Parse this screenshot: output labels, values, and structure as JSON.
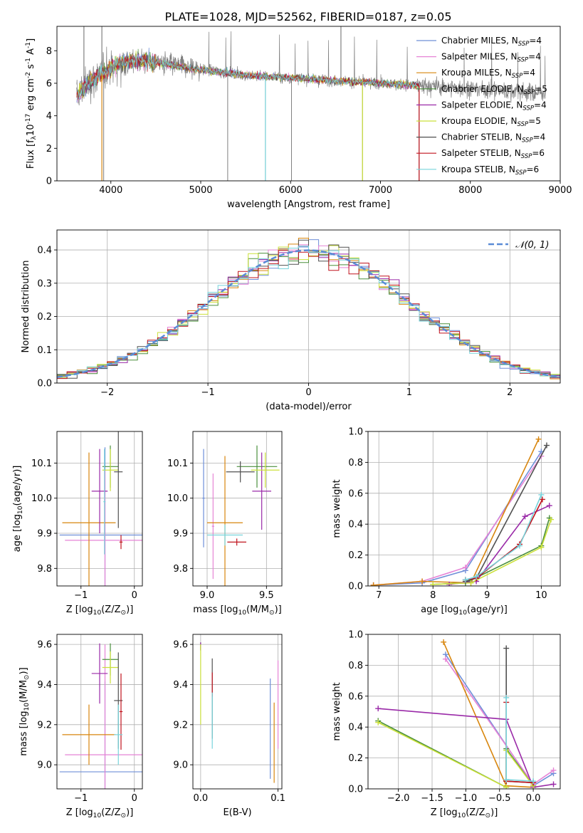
{
  "figure_title": "PLATE=1028, MJD=52562, FIBERID=0187, z=0.05",
  "models": [
    {
      "label": "Chabrier MILES, N$_{SSP}$=4",
      "display": "Chabrier MILES, N",
      "sub": "SSP",
      "tail": "=4",
      "color": "#6f8fd8"
    },
    {
      "label": "Salpeter MILES, N$_{SSP}$=4",
      "display": "Salpeter MILES, N",
      "sub": "SSP",
      "tail": "=4",
      "color": "#e683d6"
    },
    {
      "label": "Kroupa MILES, N$_{SSP}$=4",
      "display": "Kroupa MILES, N",
      "sub": "SSP",
      "tail": "=4",
      "color": "#d8860e"
    },
    {
      "label": "Chabrier ELODIE, N$_{SSP}$=5",
      "display": "Chabrier ELODIE, N",
      "sub": "SSP",
      "tail": "=5",
      "color": "#4a8f3c"
    },
    {
      "label": "Salpeter ELODIE, N$_{SSP}$=4",
      "display": "Salpeter ELODIE, N",
      "sub": "SSP",
      "tail": "=4",
      "color": "#9a2aa8"
    },
    {
      "label": "Kroupa ELODIE, N$_{SSP}$=5",
      "display": "Kroupa ELODIE, N",
      "sub": "SSP",
      "tail": "=5",
      "color": "#cbe03a"
    },
    {
      "label": "Chabrier STELIB, N$_{SSP}$=4",
      "display": "Chabrier STELIB, N",
      "sub": "SSP",
      "tail": "=4",
      "color": "#505050"
    },
    {
      "label": "Salpeter STELIB, N$_{SSP}$=6",
      "display": "Salpeter STELIB, N",
      "sub": "SSP",
      "tail": "=6",
      "color": "#c0141e"
    },
    {
      "label": "Kroupa STELIB, N$_{SSP}$=6",
      "display": "Kroupa STELIB, N",
      "sub": "SSP",
      "tail": "=6",
      "color": "#78d4dc"
    }
  ],
  "chart_data": [
    {
      "id": "spectrum",
      "type": "line",
      "xlabel": "wavelength [Angstrom, rest frame]",
      "ylabel": "Flux [f$_\\lambda$10$^{-17}$ erg cm$^{-2}$ s$^{-1}$ A$^{-1}$]",
      "xlim": [
        3400,
        9000
      ],
      "ylim": [
        0,
        9.5
      ],
      "xticks": [
        4000,
        5000,
        6000,
        7000,
        8000,
        9000
      ],
      "yticks": [
        0,
        2,
        4,
        6,
        8
      ],
      "data_color": "#808080",
      "continuum": [
        [
          3620,
          5.2
        ],
        [
          3700,
          5.8
        ],
        [
          3900,
          6.6
        ],
        [
          4100,
          7.3
        ],
        [
          4300,
          7.4
        ],
        [
          4500,
          7.3
        ],
        [
          4700,
          7.1
        ],
        [
          4900,
          6.9
        ],
        [
          5200,
          6.7
        ],
        [
          5500,
          6.5
        ],
        [
          5800,
          6.4
        ],
        [
          6100,
          6.3
        ],
        [
          6400,
          6.2
        ],
        [
          6700,
          6.1
        ],
        [
          7000,
          6.0
        ],
        [
          7300,
          5.9
        ],
        [
          7600,
          5.8
        ],
        [
          7900,
          5.7
        ],
        [
          8200,
          5.6
        ],
        [
          8500,
          5.5
        ],
        [
          8800,
          5.4
        ]
      ],
      "dropouts": [
        3920,
        5300,
        5720,
        6010,
        6800,
        7430
      ],
      "spikes": [
        [
          6560,
          9.5
        ],
        [
          3700,
          9.5
        ],
        [
          3900,
          9.5
        ]
      ],
      "data_range": [
        3620,
        8840
      ],
      "model_range": [
        3620,
        7430
      ],
      "legend_position": "upper right"
    },
    {
      "id": "residuals",
      "type": "histogram",
      "xlabel": "(data-model)/error",
      "ylabel": "Normed distribution",
      "xlim": [
        -2.5,
        2.5
      ],
      "ylim": [
        0,
        0.46
      ],
      "xticks": [
        -2,
        -1,
        0,
        1,
        2
      ],
      "yticks": [
        0.0,
        0.1,
        0.2,
        0.3,
        0.4
      ],
      "bin_width": 0.1,
      "reference": {
        "label": "$\\mathcal{N}(0,1)$",
        "display": "𝒩(0, 1)",
        "mu": 0,
        "sigma": 1,
        "color": "#5a8bd6"
      },
      "legend_position": "upper right"
    },
    {
      "id": "age_vs_z",
      "type": "errorbar",
      "xlabel": "Z [log$_{10}$(Z/Z$_\\odot$)]",
      "ylabel": "age  [log$_{10}$(age/yr)]",
      "xlim": [
        -1.45,
        0.15
      ],
      "ylim": [
        9.75,
        10.19
      ],
      "xticks": [
        -1,
        0
      ],
      "yticks": [
        9.8,
        9.9,
        10.0,
        10.1
      ],
      "points": [
        {
          "x": -0.55,
          "xerr": 0.85,
          "y": 9.895,
          "yerr": 0.25,
          "color": "#6f8fd8"
        },
        {
          "x": -0.55,
          "xerr": 0.75,
          "y": 9.88,
          "yerr": 0.2,
          "color": "#e683d6"
        },
        {
          "x": -0.85,
          "xerr": 0.5,
          "y": 9.93,
          "yerr": 0.2,
          "color": "#d8860e"
        },
        {
          "x": -0.45,
          "xerr": 0.15,
          "y": 10.09,
          "yerr": 0.06,
          "color": "#4a8f3c"
        },
        {
          "x": -0.65,
          "xerr": 0.15,
          "y": 10.02,
          "yerr": 0.12,
          "color": "#9a2aa8"
        },
        {
          "x": -0.45,
          "xerr": 0.15,
          "y": 10.08,
          "yerr": 0.06,
          "color": "#cbe03a"
        },
        {
          "x": -0.3,
          "xerr": 0.08,
          "y": 10.075,
          "yerr": 0.16,
          "color": "#505050"
        },
        {
          "x": -0.25,
          "xerr": 0.03,
          "y": 9.875,
          "yerr": 0.02,
          "color": "#c0141e"
        },
        {
          "x": -0.56,
          "xerr": 0.02,
          "y": 9.99,
          "yerr": 0.15,
          "color": "#78d4dc"
        }
      ]
    },
    {
      "id": "age_vs_mass",
      "type": "errorbar",
      "xlabel": "mass [log$_{10}$(M/M$_\\odot$)]",
      "ylabel": "",
      "xlim": [
        8.88,
        9.63
      ],
      "ylim": [
        9.75,
        10.19
      ],
      "xticks": [
        9.0,
        9.5
      ],
      "yticks": [
        9.8,
        9.9,
        10.0,
        10.1
      ],
      "points": [
        {
          "x": 8.97,
          "xerr": 0.01,
          "y": 10.0,
          "yerr": 0.14,
          "color": "#6f8fd8"
        },
        {
          "x": 9.05,
          "xerr": 0.01,
          "y": 9.92,
          "yerr": 0.15,
          "color": "#e683d6"
        },
        {
          "x": 9.15,
          "xerr": 0.15,
          "y": 9.93,
          "yerr": 0.19,
          "color": "#d8860e"
        },
        {
          "x": 9.42,
          "xerr": 0.17,
          "y": 10.09,
          "yerr": 0.06,
          "color": "#4a8f3c"
        },
        {
          "x": 9.46,
          "xerr": 0.08,
          "y": 10.02,
          "yerr": 0.11,
          "color": "#9a2aa8"
        },
        {
          "x": 9.49,
          "xerr": 0.12,
          "y": 10.08,
          "yerr": 0.05,
          "color": "#cbe03a"
        },
        {
          "x": 9.28,
          "xerr": 0.12,
          "y": 10.075,
          "yerr": 0.03,
          "color": "#505050"
        },
        {
          "x": 9.25,
          "xerr": 0.08,
          "y": 9.875,
          "yerr": 0.01,
          "color": "#c0141e"
        },
        {
          "x": 9.15,
          "xerr": 0.15,
          "y": 9.895,
          "yerr": 0.03,
          "color": "#78d4dc"
        }
      ]
    },
    {
      "id": "weight_vs_age",
      "type": "line",
      "xlabel": "age  [log$_{10}$(age/yr)]",
      "ylabel": "mass weight",
      "xlim": [
        6.8,
        10.35
      ],
      "ylim": [
        0,
        1.0
      ],
      "xticks": [
        7,
        8,
        9,
        10
      ],
      "yticks": [
        0.0,
        0.2,
        0.4,
        0.6,
        0.8,
        1.0
      ],
      "series": [
        {
          "color": "#6f8fd8",
          "points": [
            [
              6.9,
              0.005
            ],
            [
              7.8,
              0.02
            ],
            [
              8.6,
              0.1
            ],
            [
              10.0,
              0.87
            ]
          ]
        },
        {
          "color": "#e683d6",
          "points": [
            [
              6.9,
              0.005
            ],
            [
              7.8,
              0.03
            ],
            [
              8.6,
              0.12
            ],
            [
              10.0,
              0.84
            ]
          ]
        },
        {
          "color": "#d8860e",
          "points": [
            [
              6.9,
              0.005
            ],
            [
              7.8,
              0.03
            ],
            [
              8.7,
              0.02
            ],
            [
              9.95,
              0.95
            ]
          ]
        },
        {
          "color": "#4a8f3c",
          "points": [
            [
              8.0,
              0.01
            ],
            [
              8.6,
              0.02
            ],
            [
              10.0,
              0.26
            ],
            [
              10.15,
              0.44
            ]
          ]
        },
        {
          "color": "#9a2aa8",
          "points": [
            [
              8.3,
              0.01
            ],
            [
              8.8,
              0.03
            ],
            [
              9.7,
              0.45
            ],
            [
              10.15,
              0.52
            ]
          ]
        },
        {
          "color": "#cbe03a",
          "points": [
            [
              8.0,
              0.01
            ],
            [
              8.7,
              0.02
            ],
            [
              10.0,
              0.25
            ],
            [
              10.18,
              0.43
            ]
          ]
        },
        {
          "color": "#505050",
          "points": [
            [
              8.6,
              0.03
            ],
            [
              8.8,
              0.05
            ],
            [
              10.1,
              0.91
            ]
          ]
        },
        {
          "color": "#c0141e",
          "points": [
            [
              8.6,
              0.04
            ],
            [
              8.8,
              0.05
            ],
            [
              9.6,
              0.27
            ],
            [
              10.02,
              0.56
            ]
          ]
        },
        {
          "color": "#78d4dc",
          "points": [
            [
              8.6,
              0.04
            ],
            [
              8.8,
              0.06
            ],
            [
              9.6,
              0.26
            ],
            [
              10.0,
              0.59
            ]
          ]
        }
      ]
    },
    {
      "id": "mass_vs_z",
      "type": "errorbar",
      "xlabel": "Z [log$_{10}$(Z/Z$_\\odot$)]",
      "ylabel": "mass [log$_{10}$(M/M$_\\odot$)]",
      "xlim": [
        -1.45,
        0.15
      ],
      "ylim": [
        8.88,
        9.65
      ],
      "xticks": [
        -1,
        0
      ],
      "yticks": [
        9.0,
        9.2,
        9.4,
        9.6
      ],
      "points": [
        {
          "x": -0.55,
          "xerr": 0.85,
          "y": 8.965,
          "yerr": 0.45,
          "color": "#6f8fd8"
        },
        {
          "x": -0.55,
          "xerr": 0.75,
          "y": 9.05,
          "yerr": 0.55,
          "color": "#e683d6"
        },
        {
          "x": -0.85,
          "xerr": 0.5,
          "y": 9.15,
          "yerr": 0.15,
          "color": "#d8860e"
        },
        {
          "x": -0.45,
          "xerr": 0.15,
          "y": 9.525,
          "yerr": 0.08,
          "color": "#4a8f3c"
        },
        {
          "x": -0.65,
          "xerr": 0.15,
          "y": 9.455,
          "yerr": 0.15,
          "color": "#9a2aa8"
        },
        {
          "x": -0.45,
          "xerr": 0.15,
          "y": 9.485,
          "yerr": 0.08,
          "color": "#cbe03a"
        },
        {
          "x": -0.3,
          "xerr": 0.08,
          "y": 9.32,
          "yerr": 0.24,
          "color": "#505050"
        },
        {
          "x": -0.25,
          "xerr": 0.03,
          "y": 9.265,
          "yerr": 0.19,
          "color": "#c0141e"
        },
        {
          "x": -0.3,
          "xerr": 0.08,
          "y": 9.15,
          "yerr": 0.15,
          "color": "#78d4dc"
        }
      ]
    },
    {
      "id": "mass_vs_ebv",
      "type": "errorbar",
      "xlabel": "E(B-V)",
      "ylabel": "",
      "xlim": [
        -0.01,
        0.105
      ],
      "ylim": [
        8.88,
        9.65
      ],
      "xticks": [
        0.0,
        0.1
      ],
      "yticks": [
        9.0,
        9.2,
        9.4,
        9.6
      ],
      "points": [
        {
          "x": 0.09,
          "xerr": 0,
          "y": 9.18,
          "yerr": 0.25,
          "color": "#6f8fd8"
        },
        {
          "x": 0.1,
          "xerr": 0,
          "y": 9.3,
          "yerr": 0.22,
          "color": "#e683d6"
        },
        {
          "x": 0.095,
          "xerr": 0,
          "y": 9.11,
          "yerr": 0.2,
          "color": "#d8860e"
        },
        {
          "x": 0.0,
          "xerr": 0,
          "y": 9.59,
          "yerr": 0.02,
          "color": "#4a8f3c"
        },
        {
          "x": 0.0,
          "xerr": 0,
          "y": 9.59,
          "yerr": 0.02,
          "color": "#9a2aa8"
        },
        {
          "x": 0.0,
          "xerr": 0,
          "y": 9.4,
          "yerr": 0.2,
          "color": "#cbe03a"
        },
        {
          "x": 0.015,
          "xerr": 0,
          "y": 9.33,
          "yerr": 0.2,
          "color": "#505050"
        },
        {
          "x": 0.015,
          "xerr": 0,
          "y": 9.4,
          "yerr": 0.06,
          "color": "#c0141e"
        },
        {
          "x": 0.015,
          "xerr": 0,
          "y": 9.22,
          "yerr": 0.14,
          "color": "#78d4dc"
        }
      ]
    },
    {
      "id": "weight_vs_z",
      "type": "line",
      "xlabel": "Z [log$_{10}$(Z/Z$_\\odot$)]",
      "ylabel": "mass weight",
      "xlim": [
        -2.45,
        0.4
      ],
      "ylim": [
        0,
        1.0
      ],
      "xticks": [
        -2.0,
        -1.5,
        -1.0,
        -0.5,
        0.0
      ],
      "yticks": [
        0.0,
        0.2,
        0.4,
        0.6,
        0.8,
        1.0
      ],
      "series": [
        {
          "color": "#6f8fd8",
          "points": [
            [
              -1.3,
              0.87
            ],
            [
              0.0,
              0.02
            ],
            [
              0.3,
              0.1
            ]
          ]
        },
        {
          "color": "#e683d6",
          "points": [
            [
              -1.3,
              0.84
            ],
            [
              0.0,
              0.03
            ],
            [
              0.3,
              0.12
            ]
          ]
        },
        {
          "color": "#d8860e",
          "points": [
            [
              -1.33,
              0.95
            ],
            [
              -0.4,
              0.02
            ],
            [
              0.0,
              0.01
            ]
          ]
        },
        {
          "color": "#4a8f3c",
          "points": [
            [
              -2.3,
              0.44
            ],
            [
              -0.4,
              0.01
            ],
            [
              -0.4,
              0.26
            ],
            [
              0.0,
              0.02
            ]
          ]
        },
        {
          "color": "#9a2aa8",
          "points": [
            [
              -2.3,
              0.52
            ],
            [
              -0.4,
              0.45
            ],
            [
              0.0,
              0.01
            ],
            [
              0.3,
              0.03
            ]
          ]
        },
        {
          "color": "#cbe03a",
          "points": [
            [
              -2.3,
              0.43
            ],
            [
              -0.4,
              0.01
            ],
            [
              -0.4,
              0.25
            ],
            [
              0.0,
              0.02
            ]
          ]
        },
        {
          "color": "#505050",
          "points": [
            [
              -0.4,
              0.91
            ],
            [
              -0.4,
              0.05
            ],
            [
              0.0,
              0.04
            ]
          ]
        },
        {
          "color": "#c0141e",
          "points": [
            [
              -0.4,
              0.56
            ],
            [
              -0.4,
              0.05
            ],
            [
              0.0,
              0.04
            ]
          ]
        },
        {
          "color": "#78d4dc",
          "points": [
            [
              -0.4,
              0.59
            ],
            [
              -0.4,
              0.06
            ],
            [
              0.0,
              0.05
            ]
          ]
        }
      ]
    }
  ]
}
